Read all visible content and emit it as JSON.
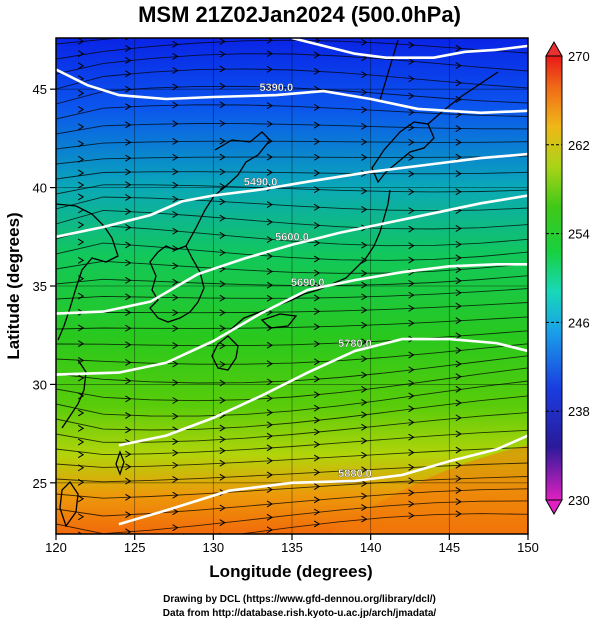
{
  "title": "MSM 21Z02Jan2024 (500.0hPa)",
  "chart_data": {
    "type": "heatmap",
    "xlabel": "Longitude (degrees)",
    "ylabel": "Latitude  (degrees)",
    "xlim": [
      120,
      150
    ],
    "ylim": [
      22.4,
      47.6
    ],
    "x_ticks": [
      "120",
      "125",
      "130",
      "135",
      "140",
      "145",
      "150"
    ],
    "y_ticks": [
      "25",
      "30",
      "35",
      "40",
      "45"
    ],
    "colorbar": {
      "min": 230,
      "max": 270,
      "tick_labels": [
        "230",
        "238",
        "246",
        "254",
        "262",
        "270"
      ]
    },
    "contour_labels": [
      "5390.0",
      "5490.0",
      "5600.0",
      "5690.0",
      "5780.0",
      "5880.0"
    ],
    "contours": [
      {
        "label": "5390.0",
        "points": [
          [
            120,
            46.0
          ],
          [
            122,
            45.2
          ],
          [
            124,
            44.7
          ],
          [
            127,
            44.5
          ],
          [
            130,
            44.6
          ],
          [
            134,
            44.7
          ],
          [
            137,
            44.9
          ],
          [
            140,
            44.5
          ],
          [
            143,
            44.0
          ],
          [
            147,
            43.8
          ],
          [
            150,
            43.9
          ]
        ]
      },
      {
        "label": "5490.0",
        "points": [
          [
            120,
            37.5
          ],
          [
            123,
            38.0
          ],
          [
            126,
            38.6
          ],
          [
            128,
            39.3
          ],
          [
            130,
            39.6
          ],
          [
            133,
            39.9
          ],
          [
            136,
            40.3
          ],
          [
            140,
            40.8
          ],
          [
            144,
            41.2
          ],
          [
            147,
            41.5
          ],
          [
            150,
            41.7
          ]
        ]
      },
      {
        "label": "5600.0",
        "points": [
          [
            120,
            33.6
          ],
          [
            123,
            33.7
          ],
          [
            126,
            34.2
          ],
          [
            129,
            35.6
          ],
          [
            132,
            36.4
          ],
          [
            135,
            37.1
          ],
          [
            138,
            37.7
          ],
          [
            141,
            38.2
          ],
          [
            144,
            38.7
          ],
          [
            147,
            39.2
          ],
          [
            150,
            39.6
          ]
        ]
      },
      {
        "label": "5690.0",
        "points": [
          [
            120,
            30.5
          ],
          [
            124,
            30.6
          ],
          [
            127,
            31.1
          ],
          [
            130,
            32.2
          ],
          [
            133,
            33.6
          ],
          [
            136,
            34.8
          ],
          [
            139,
            35.3
          ],
          [
            142,
            35.7
          ],
          [
            145,
            36.0
          ],
          [
            148,
            36.1
          ],
          [
            150,
            36.1
          ]
        ]
      },
      {
        "label": "5780.0",
        "points": [
          [
            124,
            26.9
          ],
          [
            127,
            27.4
          ],
          [
            130,
            28.3
          ],
          [
            133,
            29.4
          ],
          [
            136,
            30.6
          ],
          [
            139,
            31.7
          ],
          [
            142,
            32.3
          ],
          [
            145,
            32.3
          ],
          [
            148,
            32.1
          ],
          [
            150,
            31.7
          ]
        ]
      },
      {
        "label": "5880.0",
        "points": [
          [
            124,
            22.9
          ],
          [
            127,
            23.6
          ],
          [
            131,
            24.6
          ],
          [
            135,
            25.0
          ],
          [
            139,
            25.1
          ],
          [
            142,
            25.4
          ],
          [
            145,
            26.1
          ],
          [
            148,
            26.7
          ],
          [
            150,
            27.4
          ]
        ]
      }
    ],
    "extra_contours": [
      {
        "points": [
          [
            135,
            47.6
          ],
          [
            137,
            47.2
          ],
          [
            139,
            46.8
          ],
          [
            141,
            46.6
          ],
          [
            144,
            46.6
          ],
          [
            146,
            46.9
          ],
          [
            148,
            47.0
          ],
          [
            150,
            47.2
          ]
        ]
      }
    ]
  },
  "credits": {
    "line1": "Drawing by DCL (https://www.gfd-dennou.org/library/dcl/)",
    "line2": "Data from http://database.rish.kyoto-u.ac.jp/arch/jmadata/"
  }
}
